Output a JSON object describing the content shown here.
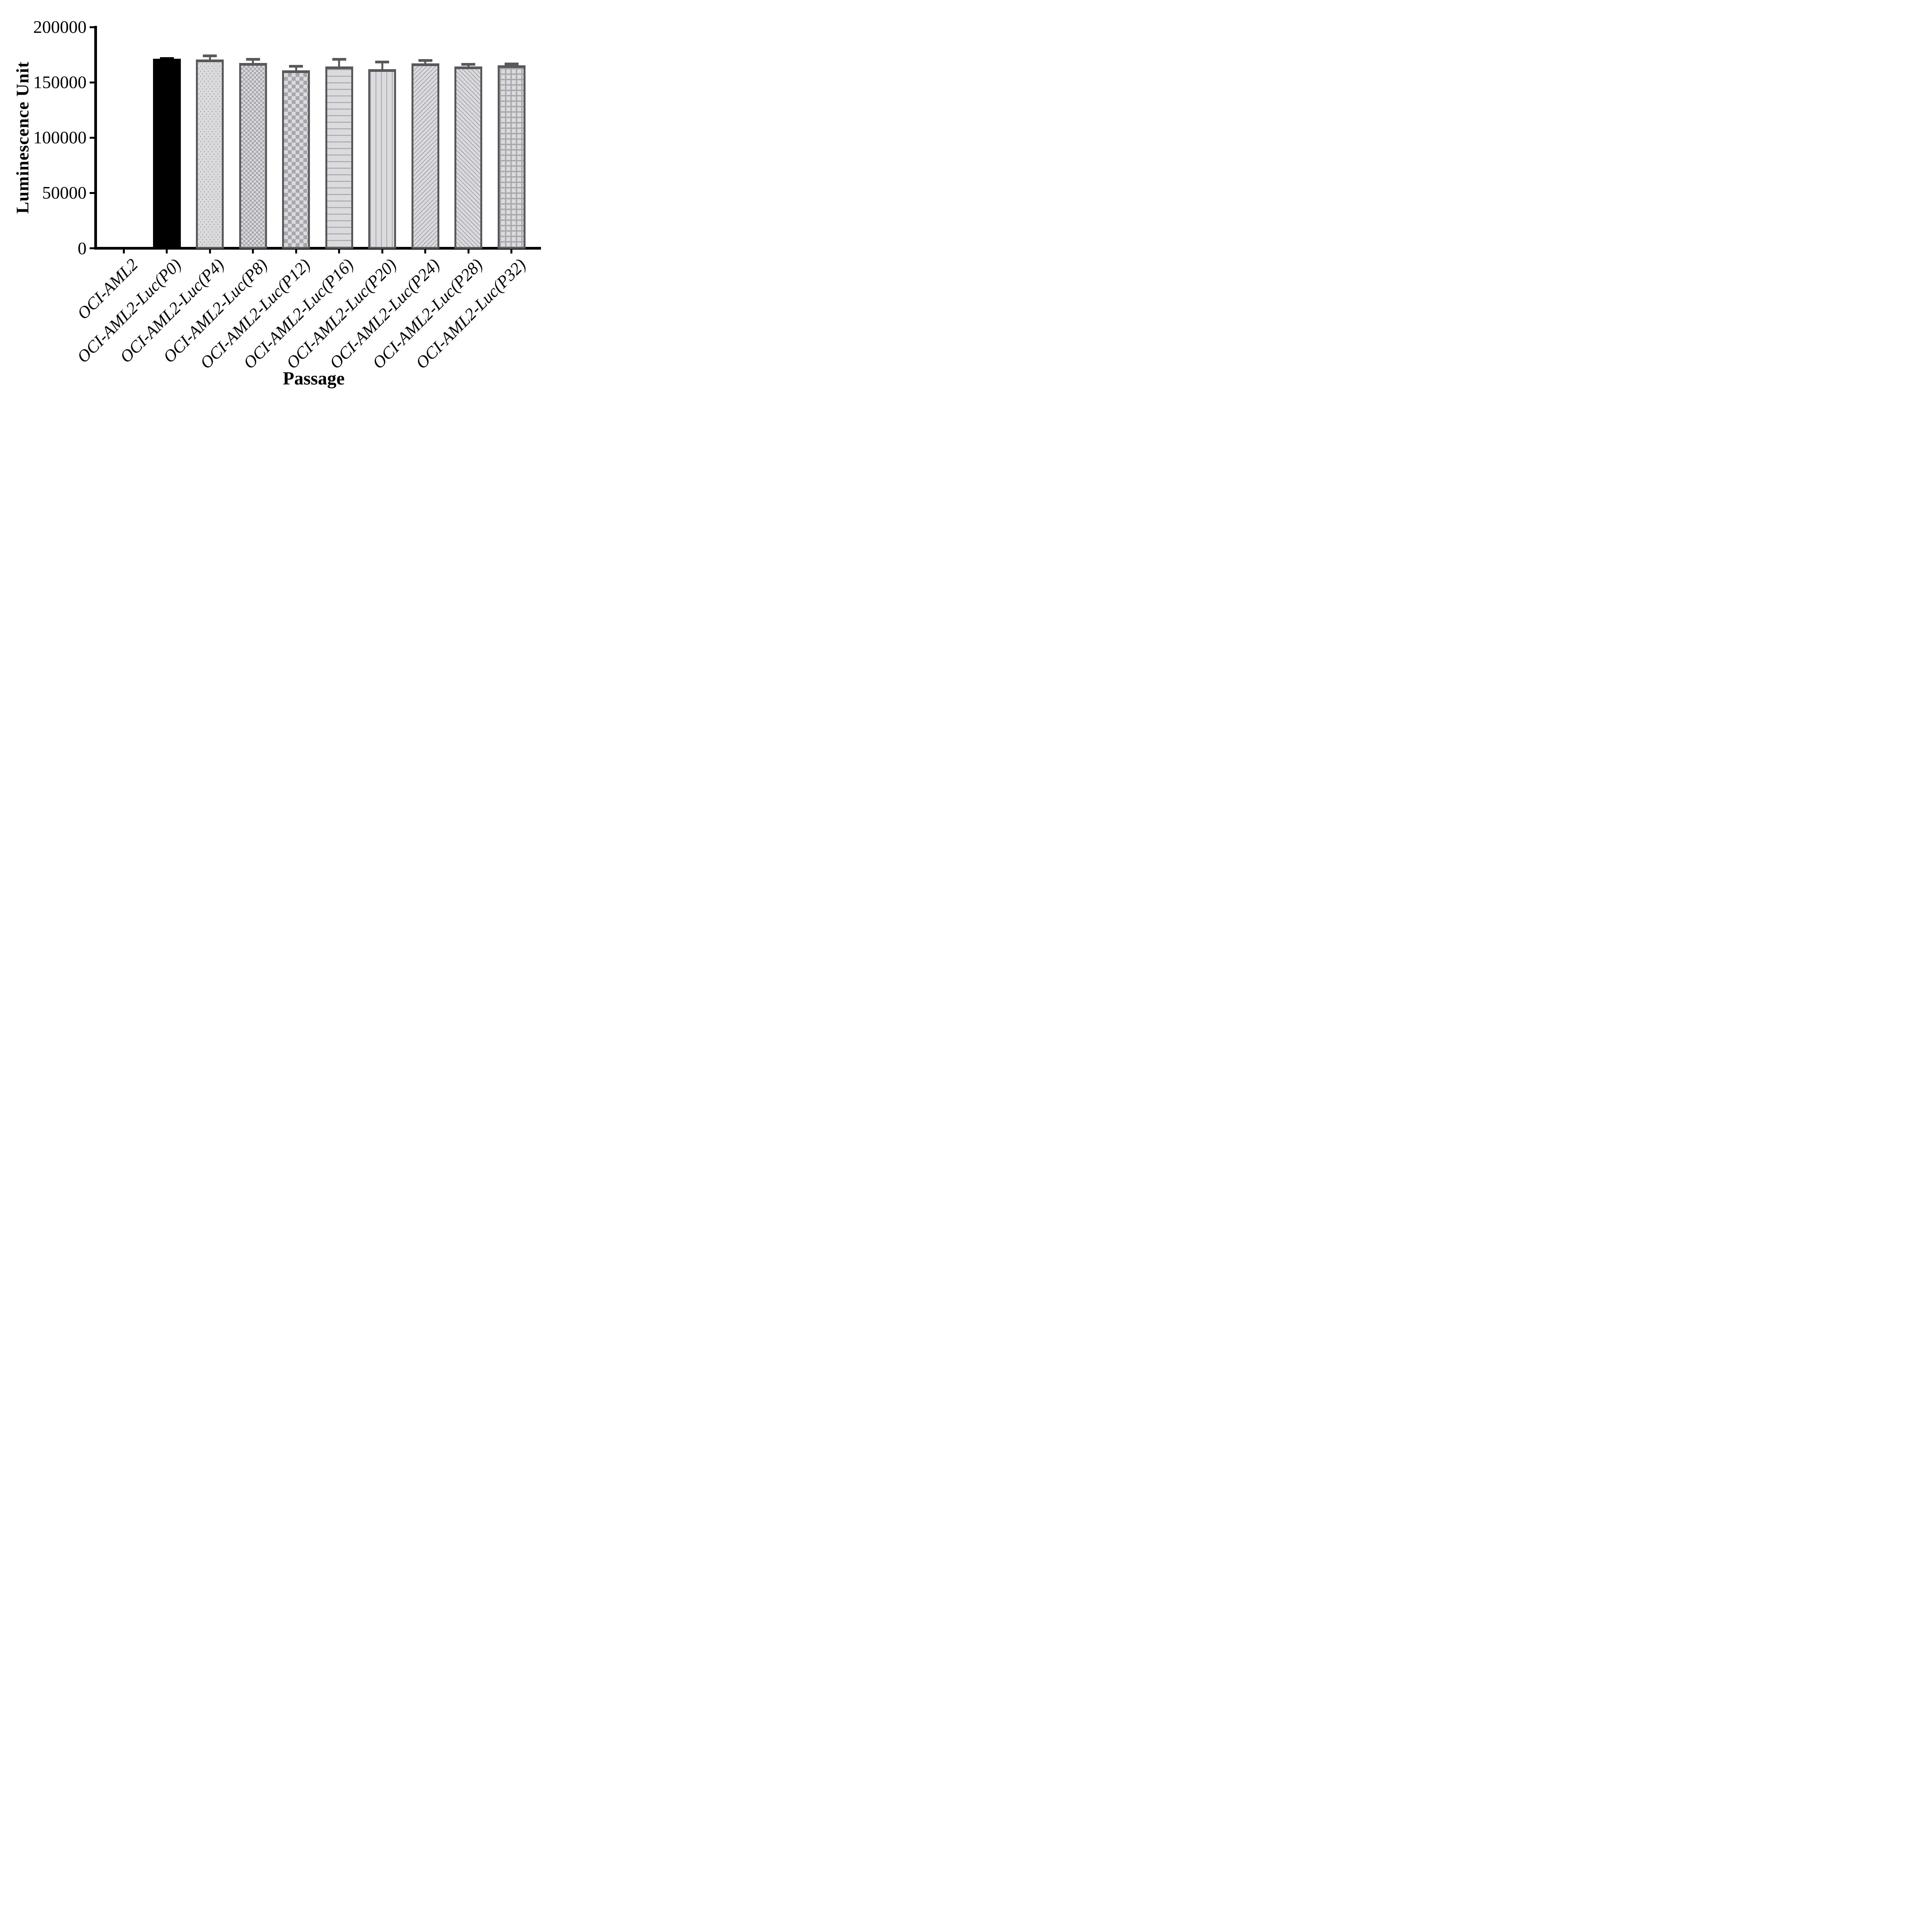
{
  "chart_data": {
    "type": "bar",
    "title": "",
    "xlabel": "Passage",
    "ylabel": "Luminescence Unit",
    "ylim": [
      0,
      200000
    ],
    "yticks": [
      0,
      50000,
      100000,
      150000,
      200000
    ],
    "ytick_labels": [
      "0",
      "50000",
      "100000",
      "150000",
      "200000"
    ],
    "categories": [
      "OCI-AML2",
      "OCI-AML2-Luc(P0)",
      "OCI-AML2-Luc(P4)",
      "OCI-AML2-Luc(P8)",
      "OCI-AML2-Luc(P12)",
      "OCI-AML2-Luc(P16)",
      "OCI-AML2-Luc(P20)",
      "OCI-AML2-Luc(P24)",
      "OCI-AML2-Luc(P28)",
      "OCI-AML2-Luc(P32)"
    ],
    "values": [
      0,
      171500,
      170500,
      167500,
      161000,
      164500,
      162000,
      167000,
      164500,
      165500
    ],
    "errors_upper": [
      0,
      1000,
      3300,
      3300,
      3700,
      6300,
      6400,
      2800,
      1800,
      1200
    ],
    "bar_patterns": [
      "none",
      "solid",
      "dots",
      "checker-small",
      "checker-large",
      "hlines",
      "vlines",
      "diag-up",
      "diag-down",
      "grid"
    ],
    "grid": false,
    "legend_position": "none"
  },
  "colors": {
    "black": "#000000",
    "dark_gray": "#59595B",
    "pattern_gray": "#A7A7AD",
    "bar_background_light": "#DBDBDD",
    "page_background": "#FFFFFF"
  }
}
